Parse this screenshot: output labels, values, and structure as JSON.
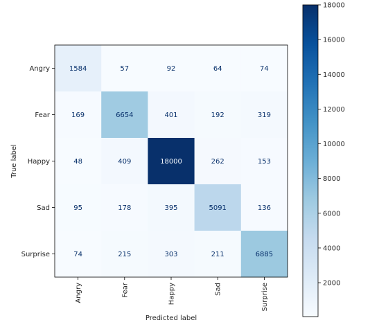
{
  "chart_data": {
    "type": "heatmap",
    "title": "",
    "xlabel": "Predicted label",
    "ylabel": "True label",
    "x_categories": [
      "Angry",
      "Fear",
      "Happy",
      "Sad",
      "Surprise"
    ],
    "y_categories": [
      "Angry",
      "Fear",
      "Happy",
      "Sad",
      "Surprise"
    ],
    "values": [
      [
        1584,
        57,
        92,
        64,
        74
      ],
      [
        169,
        6654,
        401,
        192,
        319
      ],
      [
        48,
        409,
        18000,
        262,
        153
      ],
      [
        95,
        178,
        395,
        5091,
        136
      ],
      [
        74,
        215,
        303,
        211,
        6885
      ]
    ],
    "colormap": "Blues",
    "color_range": [
      48,
      18000
    ],
    "colorbar_ticks": [
      "2000",
      "4000",
      "6000",
      "8000",
      "10000",
      "12000",
      "14000",
      "16000",
      "18000"
    ],
    "colorbar_tick_values": [
      2000,
      4000,
      6000,
      8000,
      10000,
      12000,
      14000,
      16000,
      18000
    ],
    "grid": false
  },
  "colors": {
    "low": "#f7fbff",
    "high": "#08306b",
    "text_dark": "#08306b",
    "text_light": "#f7fbff"
  }
}
